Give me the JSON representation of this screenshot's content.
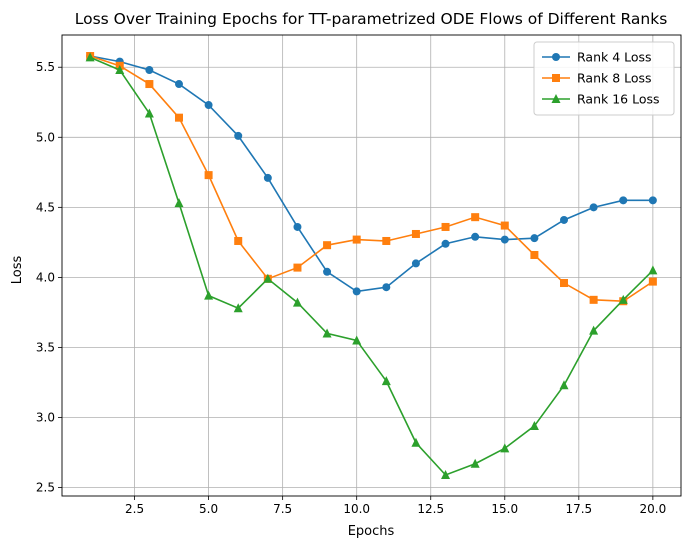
{
  "chart_data": {
    "type": "line",
    "title": "Loss Over Training Epochs for TT-parametrized ODE Flows of Different Ranks",
    "xlabel": "Epochs",
    "ylabel": "Loss",
    "xlim": [
      0.05,
      20.95
    ],
    "ylim": [
      2.44,
      5.73
    ],
    "xticks": [
      2.5,
      5.0,
      7.5,
      10.0,
      12.5,
      15.0,
      17.5,
      20.0
    ],
    "xtick_labels": [
      "2.5",
      "5.0",
      "7.5",
      "10.0",
      "12.5",
      "15.0",
      "17.5",
      "20.0"
    ],
    "yticks": [
      2.5,
      3.0,
      3.5,
      4.0,
      4.5,
      5.0,
      5.5
    ],
    "ytick_labels": [
      "2.5",
      "3.0",
      "3.5",
      "4.0",
      "4.5",
      "5.0",
      "5.5"
    ],
    "grid": true,
    "legend_position": "top-right",
    "x": [
      1,
      2,
      3,
      4,
      5,
      6,
      7,
      8,
      9,
      10,
      11,
      12,
      13,
      14,
      15,
      16,
      17,
      18,
      19,
      20
    ],
    "series": [
      {
        "name": "Rank 4 Loss",
        "color": "#1f77b4",
        "marker": "circle",
        "values": [
          5.58,
          5.54,
          5.48,
          5.38,
          5.23,
          5.01,
          4.71,
          4.36,
          4.04,
          3.9,
          3.93,
          4.1,
          4.24,
          4.29,
          4.27,
          4.28,
          4.41,
          4.5,
          4.55,
          4.55
        ]
      },
      {
        "name": "Rank 8 Loss",
        "color": "#ff7f0e",
        "marker": "square",
        "values": [
          5.58,
          5.51,
          5.38,
          5.14,
          4.73,
          4.26,
          3.99,
          4.07,
          4.23,
          4.27,
          4.26,
          4.31,
          4.36,
          4.43,
          4.37,
          4.16,
          3.96,
          3.84,
          3.83,
          3.97
        ]
      },
      {
        "name": "Rank 16 Loss",
        "color": "#2ca02c",
        "marker": "triangle",
        "values": [
          5.57,
          5.48,
          5.17,
          4.53,
          3.87,
          3.78,
          3.99,
          3.82,
          3.6,
          3.55,
          3.26,
          2.82,
          2.59,
          2.67,
          2.78,
          2.94,
          3.23,
          3.62,
          3.84,
          4.05
        ]
      }
    ]
  }
}
